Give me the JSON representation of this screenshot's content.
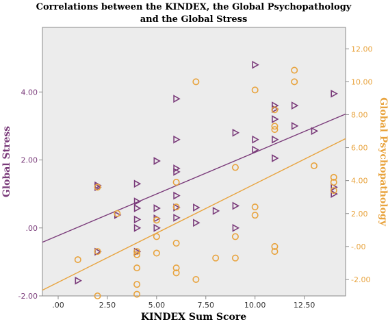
{
  "chart_data": {
    "type": "scatter",
    "title_line1": "Correlations between the KINDEX, the Global Psychopathology",
    "title_line2": "and the Global Stress",
    "xlabel": "KINDEX Sum Score",
    "ylabel_left": "Global Stress",
    "ylabel_right": "Global Psychopathology",
    "xlim": [
      -0.8,
      14.6
    ],
    "ylim_left": [
      -2.0,
      5.9
    ],
    "ylim_right": [
      -3.0,
      13.3
    ],
    "x_ticks": [
      ".00",
      "2.50",
      "5.00",
      "7.50",
      "10.00",
      "12.50"
    ],
    "x_tick_values": [
      0,
      2.5,
      5,
      7.5,
      10,
      12.5
    ],
    "y_left_ticks": [
      "-2.00",
      ".00",
      "2.00",
      "4.00"
    ],
    "y_left_tick_values": [
      -2,
      0,
      2,
      4
    ],
    "y_right_ticks": [
      "-2.00",
      "-.00",
      "2.00",
      "4.00",
      "6.00",
      "8.00",
      "10.00",
      "12.00"
    ],
    "y_right_tick_values": [
      -2,
      0,
      2,
      4,
      6,
      8,
      10,
      12
    ],
    "grid": false,
    "colors": {
      "stress": "#7a3b7a",
      "psych": "#e8a33d",
      "plot_bg": "#ececec"
    },
    "series": [
      {
        "axis": "left",
        "marker": "triangle",
        "points": [
          [
            1,
            -1.55
          ],
          [
            2,
            1.25
          ],
          [
            2,
            1.2
          ],
          [
            2,
            -0.7
          ],
          [
            3,
            0.38
          ],
          [
            4,
            1.3
          ],
          [
            4,
            0.78
          ],
          [
            4,
            0.58
          ],
          [
            4,
            0.25
          ],
          [
            4,
            0
          ],
          [
            4,
            -0.7
          ],
          [
            5,
            1.97
          ],
          [
            5,
            0.58
          ],
          [
            5,
            0.28
          ],
          [
            5,
            0
          ],
          [
            6,
            3.8
          ],
          [
            6,
            2.6
          ],
          [
            6,
            1.75
          ],
          [
            6,
            1.65
          ],
          [
            6,
            0.95
          ],
          [
            6,
            0.6
          ],
          [
            6,
            0.3
          ],
          [
            7,
            0.6
          ],
          [
            7,
            0.15
          ],
          [
            8,
            0.5
          ],
          [
            9,
            2.8
          ],
          [
            9,
            0.65
          ],
          [
            9,
            0
          ],
          [
            10,
            4.8
          ],
          [
            10,
            2.6
          ],
          [
            10,
            2.3
          ],
          [
            11,
            3.6
          ],
          [
            11,
            3.5
          ],
          [
            11,
            3.2
          ],
          [
            11,
            2.6
          ],
          [
            11,
            2.05
          ],
          [
            12,
            3.6
          ],
          [
            12,
            3.0
          ],
          [
            13,
            2.85
          ],
          [
            14,
            3.95
          ],
          [
            14,
            1.2
          ],
          [
            14,
            1.0
          ]
        ]
      },
      {
        "axis": "right",
        "marker": "circle",
        "points": [
          [
            1,
            -0.8
          ],
          [
            2,
            3.6
          ],
          [
            2,
            -0.3
          ],
          [
            2,
            -3.0
          ],
          [
            3,
            2.0
          ],
          [
            4,
            -0.5
          ],
          [
            4,
            -0.3
          ],
          [
            4,
            -1.3
          ],
          [
            4,
            -2.3
          ],
          [
            4,
            -2.9
          ],
          [
            5,
            1.6
          ],
          [
            5,
            0.6
          ],
          [
            5,
            -0.4
          ],
          [
            6,
            3.9
          ],
          [
            6,
            2.4
          ],
          [
            6,
            0.2
          ],
          [
            6,
            -1.3
          ],
          [
            6,
            -1.6
          ],
          [
            7,
            10.0
          ],
          [
            7,
            -2.0
          ],
          [
            8,
            -0.7
          ],
          [
            9,
            4.8
          ],
          [
            9,
            0.6
          ],
          [
            9,
            -0.7
          ],
          [
            10,
            9.5
          ],
          [
            10,
            2.4
          ],
          [
            10,
            1.9
          ],
          [
            11,
            8.3
          ],
          [
            11,
            7.3
          ],
          [
            11,
            7.1
          ],
          [
            11,
            0
          ],
          [
            11,
            -0.3
          ],
          [
            12,
            10.7
          ],
          [
            12,
            10.0
          ],
          [
            13,
            4.9
          ],
          [
            14,
            4.2
          ],
          [
            14,
            3.9
          ],
          [
            14,
            3.4
          ]
        ]
      }
    ],
    "fit_lines": [
      {
        "axis": "left",
        "x": [
          -0.8,
          14.6
        ],
        "y": [
          -0.42,
          3.35
        ]
      },
      {
        "axis": "right",
        "x": [
          -0.8,
          14.6
        ],
        "y": [
          -2.65,
          6.55
        ]
      }
    ]
  }
}
